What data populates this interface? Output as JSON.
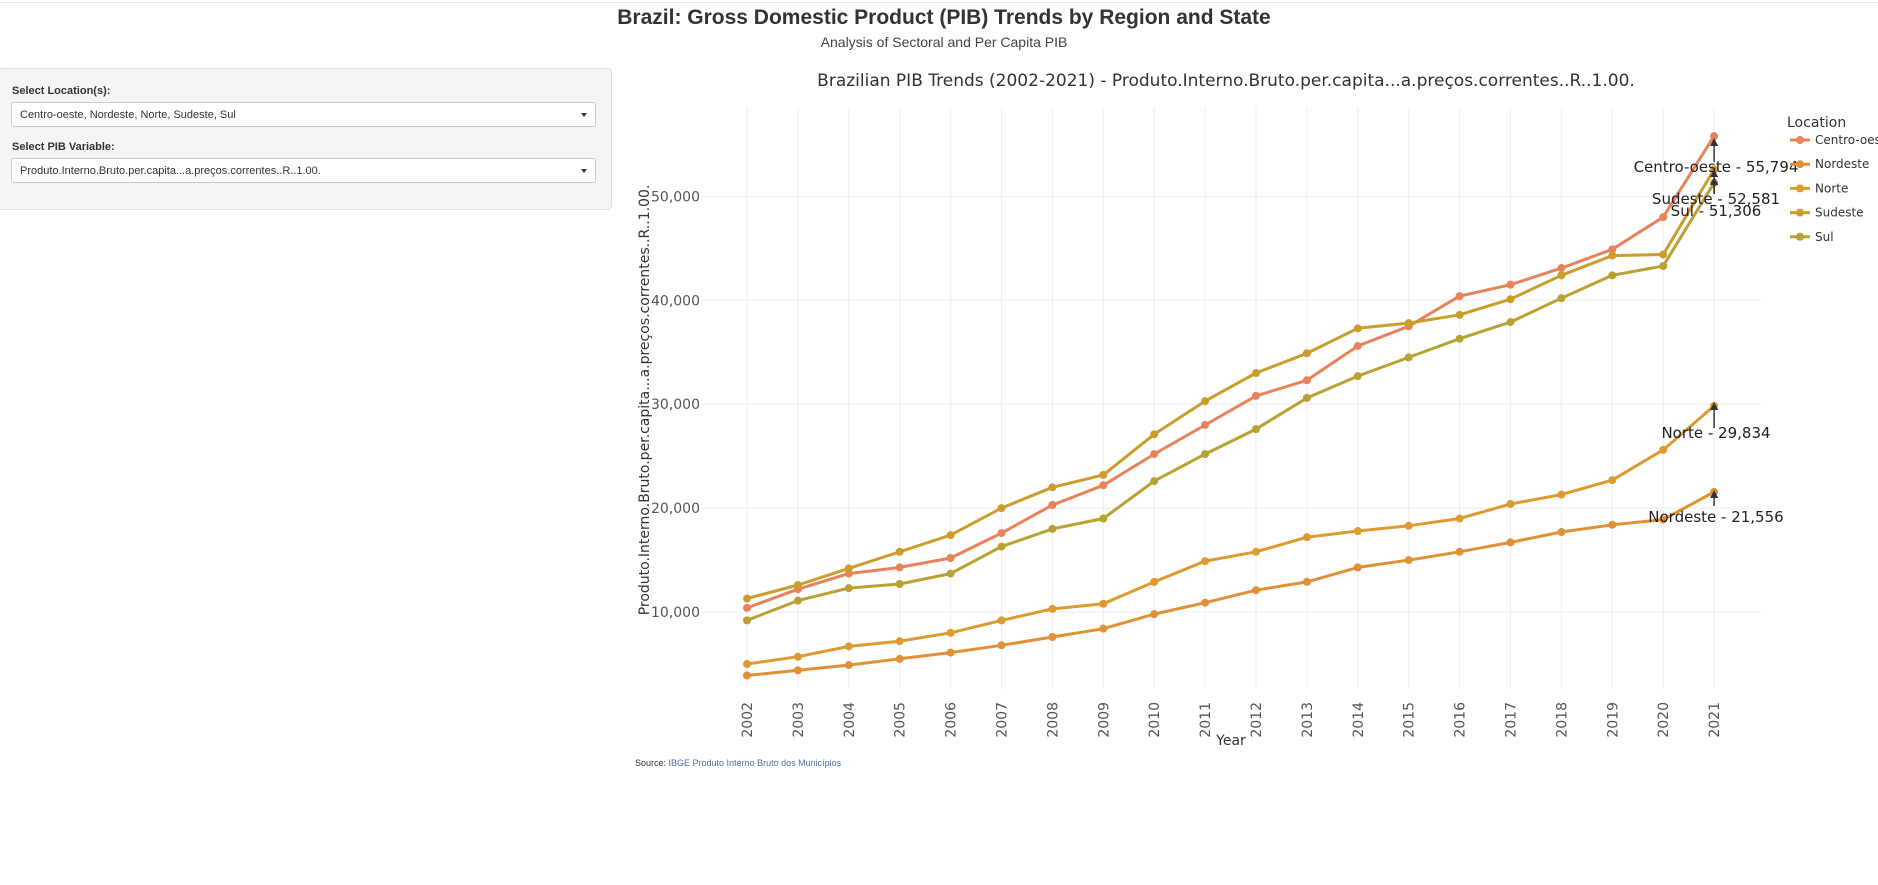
{
  "header": {
    "title": "Brazil: Gross Domestic Product (PIB) Trends by Region and State",
    "subtitle": "Analysis of Sectoral and Per Capita PIB"
  },
  "sidebar": {
    "location_label": "Select Location(s):",
    "location_value": "Centro-oeste, Nordeste, Norte, Sudeste, Sul",
    "variable_label": "Select PIB Variable:",
    "variable_value": "Produto.Interno.Bruto.per.capita...a.preços.correntes..R..1.00."
  },
  "source": {
    "prefix": "Source: ",
    "link_text": "IBGE Produto Interno Bruto dos Municípios"
  },
  "chart_data": {
    "type": "line",
    "title": "Brazilian PIB Trends (2002-2021) - Produto.Interno.Bruto.per.capita...a.preços.correntes..R..1.00.",
    "xlabel": "Year",
    "ylabel": "Produto.Interno.Bruto.per.capita...a.preços.correntes..R..1.00.",
    "legend_title": "Location",
    "legend_position": "right",
    "grid": true,
    "ylim": [
      2500,
      58500
    ],
    "x": [
      2002,
      2003,
      2004,
      2005,
      2006,
      2007,
      2008,
      2009,
      2010,
      2011,
      2012,
      2013,
      2014,
      2015,
      2016,
      2017,
      2018,
      2019,
      2020,
      2021
    ],
    "yticks": [
      10000,
      20000,
      30000,
      40000,
      50000
    ],
    "ytick_labels": [
      "10,000",
      "20,000",
      "30,000",
      "40,000",
      "50,000"
    ],
    "series": [
      {
        "name": "Centro-oeste",
        "color": "#e8825b",
        "values": [
          10400,
          12200,
          13700,
          14300,
          15200,
          17600,
          20300,
          22200,
          25200,
          28000,
          30800,
          32300,
          35600,
          37500,
          40400,
          41500,
          43100,
          44900,
          48000,
          55794
        ]
      },
      {
        "name": "Nordeste",
        "color": "#e09137",
        "values": [
          3900,
          4400,
          4900,
          5500,
          6100,
          6800,
          7600,
          8400,
          9800,
          10900,
          12100,
          12900,
          14300,
          15000,
          15800,
          16700,
          17700,
          18400,
          18900,
          21556
        ]
      },
      {
        "name": "Norte",
        "color": "#dd9a2e",
        "values": [
          5000,
          5700,
          6700,
          7200,
          8000,
          9200,
          10300,
          10800,
          12900,
          14900,
          15800,
          17200,
          17800,
          18300,
          19000,
          20400,
          21300,
          22700,
          25600,
          29834
        ]
      },
      {
        "name": "Sudeste",
        "color": "#ca9d2c",
        "values": [
          11300,
          12600,
          14200,
          15800,
          17400,
          20000,
          22000,
          23200,
          27100,
          30300,
          33000,
          34900,
          37300,
          37800,
          38600,
          40100,
          42400,
          44300,
          44400,
          52581
        ]
      },
      {
        "name": "Sul",
        "color": "#b9a132",
        "values": [
          9200,
          11100,
          12300,
          12700,
          13700,
          16300,
          18000,
          19000,
          22600,
          25200,
          27600,
          30600,
          32700,
          34500,
          36300,
          37900,
          40200,
          42400,
          43300,
          51306
        ]
      }
    ],
    "annotations": [
      {
        "text": "Centro-oeste - 55,794",
        "x": 2021,
        "y": 55794
      },
      {
        "text": "Sudeste - 52,581",
        "x": 2021,
        "y": 52581
      },
      {
        "text": "Sul - 51,306",
        "x": 2021,
        "y": 51306
      },
      {
        "text": "Norte - 29,834",
        "x": 2021,
        "y": 29834
      },
      {
        "text": "Nordeste - 21,556",
        "x": 2021,
        "y": 21556
      }
    ]
  }
}
